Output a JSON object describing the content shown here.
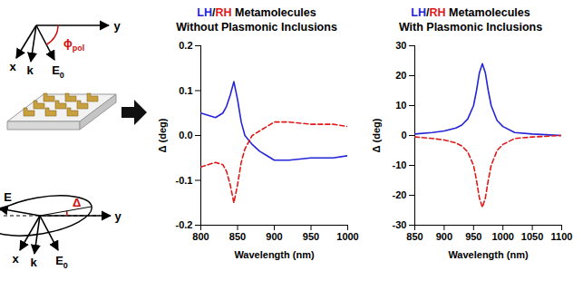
{
  "diagram": {
    "input_inset": {
      "axes": [
        "y",
        "x",
        "k"
      ],
      "field": {
        "base": "E",
        "sub": "0"
      },
      "angle": {
        "base": "ϕ",
        "sub": "pol"
      }
    },
    "output_inset": {
      "axes": [
        "y",
        "x",
        "k"
      ],
      "field": "E",
      "incident_field": {
        "base": "E",
        "sub": "0"
      },
      "angle": "Δ"
    }
  },
  "chart_data": [
    {
      "type": "line",
      "title": [
        "LH/RH Metamolecules",
        "Without Plasmonic Inclusions"
      ],
      "x_label": "Wavelength (nm)",
      "y_label": "Δ (deg)",
      "x": [
        800,
        810,
        820,
        830,
        835,
        840,
        845,
        850,
        855,
        860,
        870,
        880,
        890,
        900,
        920,
        950,
        980,
        1000
      ],
      "series": [
        {
          "name": "LH",
          "color": "#2424d8",
          "line_style": "solid",
          "values": [
            0.05,
            0.045,
            0.04,
            0.05,
            0.065,
            0.09,
            0.12,
            0.08,
            0.03,
            0.0,
            -0.02,
            -0.035,
            -0.045,
            -0.055,
            -0.055,
            -0.05,
            -0.05,
            -0.045
          ]
        },
        {
          "name": "RH",
          "color": "#e01818",
          "line_style": "dashed",
          "values": [
            -0.07,
            -0.065,
            -0.06,
            -0.065,
            -0.08,
            -0.11,
            -0.15,
            -0.11,
            -0.06,
            -0.03,
            0.0,
            0.01,
            0.02,
            0.03,
            0.03,
            0.025,
            0.025,
            0.02
          ]
        }
      ],
      "xlim": [
        800,
        1000
      ],
      "xticks": [
        800,
        850,
        900,
        950,
        1000
      ],
      "ylim": [
        -0.2,
        0.2
      ],
      "yticks": [
        -0.2,
        -0.1,
        {
          "value": 0,
          "label": "0.0"
        },
        0.1,
        0.2
      ]
    },
    {
      "type": "line",
      "title": [
        "LH/RH Metamolecules",
        "With Plasmonic Inclusions"
      ],
      "x_label": "Wavelength (nm)",
      "y_label": "Δ (deg)",
      "x": [
        850,
        880,
        900,
        920,
        930,
        940,
        950,
        955,
        960,
        965,
        970,
        975,
        980,
        990,
        1000,
        1020,
        1050,
        1080,
        1100
      ],
      "series": [
        {
          "name": "LH",
          "color": "#2424d8",
          "line_style": "solid",
          "values": [
            0.5,
            1,
            1.5,
            2.5,
            3.5,
            5.5,
            10,
            15,
            21,
            24,
            21,
            15,
            10,
            5,
            3,
            1,
            0.5,
            0.2,
            0
          ]
        },
        {
          "name": "RH",
          "color": "#e01818",
          "line_style": "dashed",
          "values": [
            -0.5,
            -1,
            -1.5,
            -2.5,
            -3.5,
            -5.5,
            -10,
            -15,
            -21,
            -24,
            -21,
            -15,
            -10,
            -5,
            -3,
            -1,
            -0.5,
            -0.2,
            0
          ]
        }
      ],
      "xlim": [
        850,
        1100
      ],
      "xticks": [
        850,
        900,
        950,
        1000,
        1050,
        1100
      ],
      "ylim": [
        -30,
        30
      ],
      "yticks": [
        -30,
        -20,
        -10,
        0,
        10,
        20,
        30
      ]
    }
  ]
}
